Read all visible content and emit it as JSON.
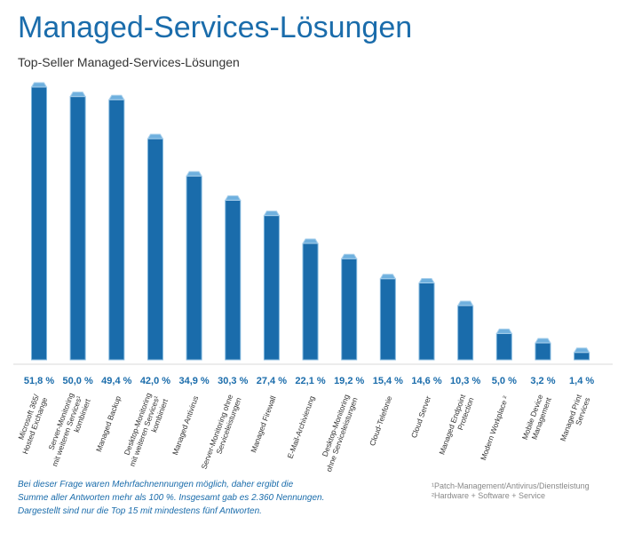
{
  "chart_data": {
    "type": "bar",
    "title": "Managed-Services-Lösungen",
    "subtitle": "Top-Seller Managed-Services-Lösungen",
    "categories": [
      "Microsoft 365/\nHosted Exchange",
      "Server-Monitoring\nmit weiteren Services¹\nkombiniert",
      "Managed Backup",
      "Desktop-Monitoring\nmit weiteren Services¹\nkombiniert",
      "Managed Antivirus",
      "Server-Monitoring ohne\nServiceleistungen",
      "Managed Firewall",
      "E-Mail-Archivierung",
      "Desktop-Monitoring\nohne Serviceleistungen",
      "Cloud-Telefonie",
      "Cloud Server",
      "Managed Endpoint\nProtection",
      "Modern Workplace ²",
      "Mobile Device\nManagement",
      "Managed Print\nServices"
    ],
    "values": [
      51.8,
      50.0,
      49.4,
      42.0,
      34.9,
      30.3,
      27.4,
      22.1,
      19.2,
      15.4,
      14.6,
      10.3,
      5.0,
      3.2,
      1.4
    ],
    "value_labels": [
      "51,8 %",
      "50,0 %",
      "49,4 %",
      "42,0 %",
      "34,9 %",
      "30,3 %",
      "27,4 %",
      "22,1 %",
      "19,2 %",
      "15,4 %",
      "14,6 %",
      "10,3 %",
      "5,0 %",
      "3,2 %",
      "1,4 %"
    ],
    "color": "#1a6cab",
    "note": "Bei dieser Frage waren Mehrfachnennungen möglich, daher ergibt die\nSumme aller Antworten mehr als 100 %. Insgesamt gab es 2.360 Nennungen.\nDargestellt sind nur die Top 15 mit mindestens fünf Antworten.",
    "footnotes": [
      "¹Patch-Management/Antivirus/Dienstleistung",
      "²Hardware + Software + Service"
    ]
  }
}
